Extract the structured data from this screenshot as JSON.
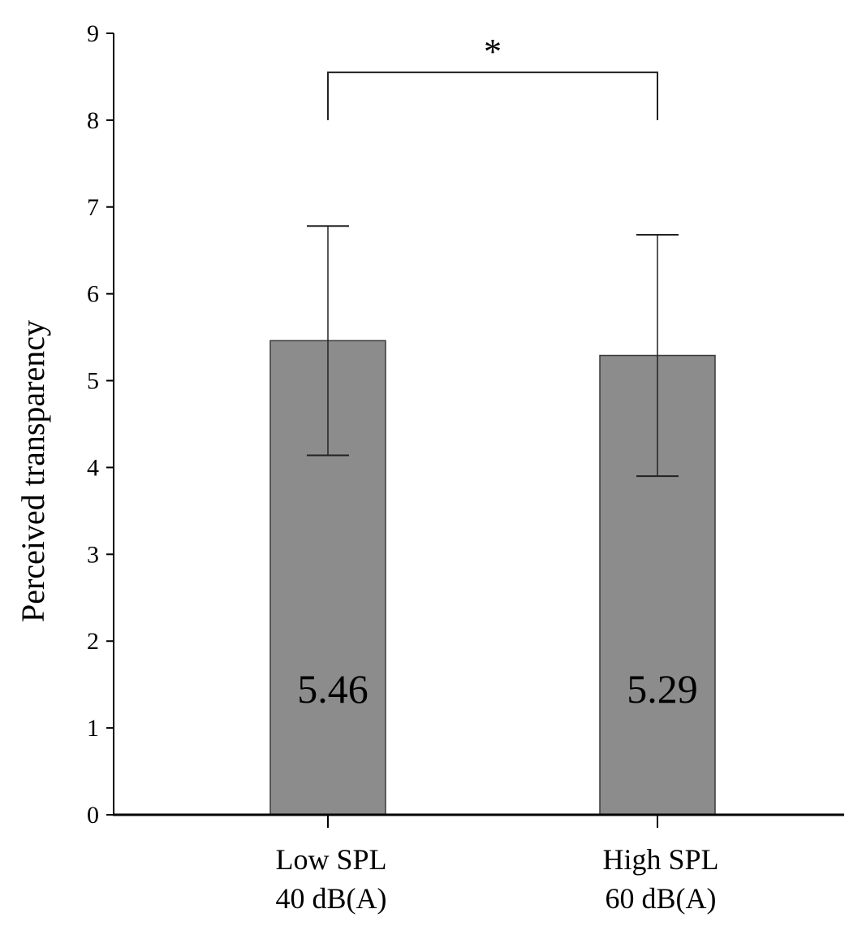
{
  "chart_data": {
    "type": "bar",
    "categories": [
      [
        "Low SPL",
        "40 dB(A)"
      ],
      [
        "High SPL",
        "60 dB(A)"
      ]
    ],
    "values": [
      5.46,
      5.29
    ],
    "value_labels": [
      "5.46",
      "5.29"
    ],
    "error_bars": [
      {
        "low": 4.14,
        "high": 6.78
      },
      {
        "low": 3.9,
        "high": 6.68
      }
    ],
    "ylabel": "Perceived transparency",
    "ylim": [
      0,
      9
    ],
    "yticks": [
      "0",
      "1",
      "2",
      "3",
      "4",
      "5",
      "6",
      "7",
      "8",
      "9"
    ],
    "grid": false,
    "significance": {
      "from": 0,
      "to": 1,
      "y_level": 8.55,
      "drop_to": 8.0,
      "label": "*"
    },
    "colors": {
      "bar_fill": "#8c8c8c",
      "bar_stroke": "#3a3a3a",
      "axis": "#000000",
      "text": "#000000"
    }
  }
}
